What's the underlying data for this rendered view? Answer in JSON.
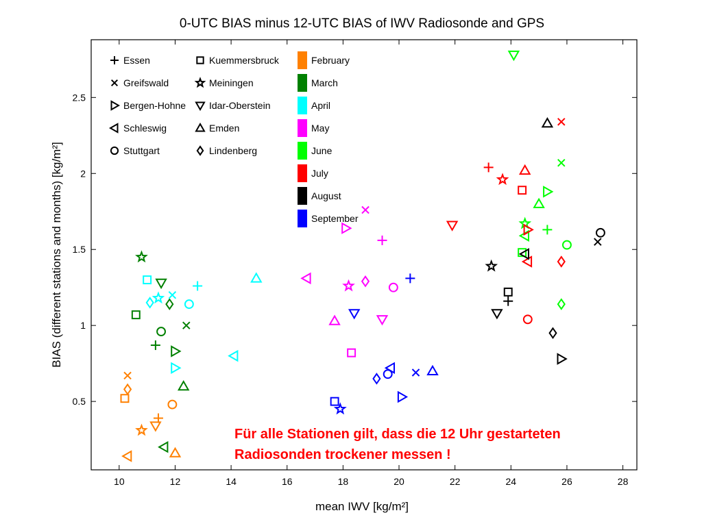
{
  "chart_data": {
    "type": "scatter",
    "title": "0-UTC BIAS minus 12-UTC BIAS of IWV Radiosonde and GPS",
    "xlabel": "mean IWV [kg/m²]",
    "ylabel": "BIAS (different stations and months) [kg/m²]",
    "xlim": [
      9,
      28.5
    ],
    "ylim": [
      0.05,
      2.88
    ],
    "xticks": [
      10,
      12,
      14,
      16,
      18,
      20,
      22,
      24,
      26,
      28
    ],
    "yticks": [
      0.5,
      1,
      1.5,
      2,
      2.5
    ],
    "grid": false,
    "legend_placement": "top-left",
    "stations": [
      {
        "name": "Essen",
        "marker": "plus"
      },
      {
        "name": "Greifswald",
        "marker": "cross"
      },
      {
        "name": "Bergen-Hohne",
        "marker": "triangle-right"
      },
      {
        "name": "Schleswig",
        "marker": "triangle-left"
      },
      {
        "name": "Stuttgart",
        "marker": "circle"
      },
      {
        "name": "Kuemmersbruck",
        "marker": "square"
      },
      {
        "name": "Meiningen",
        "marker": "star"
      },
      {
        "name": "Idar-Oberstein",
        "marker": "triangle-down"
      },
      {
        "name": "Emden",
        "marker": "triangle-up"
      },
      {
        "name": "Lindenberg",
        "marker": "diamond"
      }
    ],
    "months": [
      {
        "name": "February",
        "color": "#ff8000"
      },
      {
        "name": "March",
        "color": "#008000"
      },
      {
        "name": "April",
        "color": "#00ffff"
      },
      {
        "name": "May",
        "color": "#ff00ff"
      },
      {
        "name": "June",
        "color": "#00ff00"
      },
      {
        "name": "July",
        "color": "#ff0000"
      },
      {
        "name": "August",
        "color": "#000000"
      },
      {
        "name": "September",
        "color": "#0000ff"
      }
    ],
    "points": [
      {
        "month": "February",
        "station": "Essen",
        "x": 11.4,
        "y": 0.39
      },
      {
        "month": "February",
        "station": "Greifswald",
        "x": 10.3,
        "y": 0.67
      },
      {
        "month": "February",
        "station": "Schleswig",
        "x": 10.3,
        "y": 0.14
      },
      {
        "month": "February",
        "station": "Stuttgart",
        "x": 11.9,
        "y": 0.48
      },
      {
        "month": "February",
        "station": "Kuemmersbruck",
        "x": 10.2,
        "y": 0.52
      },
      {
        "month": "February",
        "station": "Meiningen",
        "x": 10.8,
        "y": 0.31
      },
      {
        "month": "February",
        "station": "Idar-Oberstein",
        "x": 11.3,
        "y": 0.34
      },
      {
        "month": "February",
        "station": "Emden",
        "x": 12.0,
        "y": 0.16
      },
      {
        "month": "February",
        "station": "Lindenberg",
        "x": 10.3,
        "y": 0.58
      },
      {
        "month": "March",
        "station": "Essen",
        "x": 11.3,
        "y": 0.87
      },
      {
        "month": "March",
        "station": "Greifswald",
        "x": 12.4,
        "y": 1.0
      },
      {
        "month": "March",
        "station": "Bergen-Hohne",
        "x": 12.0,
        "y": 0.83
      },
      {
        "month": "March",
        "station": "Schleswig",
        "x": 11.6,
        "y": 0.2
      },
      {
        "month": "March",
        "station": "Stuttgart",
        "x": 11.5,
        "y": 0.96
      },
      {
        "month": "March",
        "station": "Kuemmersbruck",
        "x": 10.6,
        "y": 1.07
      },
      {
        "month": "March",
        "station": "Meiningen",
        "x": 10.8,
        "y": 1.45
      },
      {
        "month": "March",
        "station": "Idar-Oberstein",
        "x": 11.5,
        "y": 1.28
      },
      {
        "month": "March",
        "station": "Emden",
        "x": 12.3,
        "y": 0.6
      },
      {
        "month": "March",
        "station": "Lindenberg",
        "x": 11.8,
        "y": 1.14
      },
      {
        "month": "April",
        "station": "Essen",
        "x": 12.8,
        "y": 1.26
      },
      {
        "month": "April",
        "station": "Greifswald",
        "x": 11.9,
        "y": 1.2
      },
      {
        "month": "April",
        "station": "Bergen-Hohne",
        "x": 12.0,
        "y": 0.72
      },
      {
        "month": "April",
        "station": "Schleswig",
        "x": 14.1,
        "y": 0.8
      },
      {
        "month": "April",
        "station": "Stuttgart",
        "x": 12.5,
        "y": 1.14
      },
      {
        "month": "April",
        "station": "Kuemmersbruck",
        "x": 11.0,
        "y": 1.3
      },
      {
        "month": "April",
        "station": "Meiningen",
        "x": 11.4,
        "y": 1.18
      },
      {
        "month": "April",
        "station": "Emden",
        "x": 14.9,
        "y": 1.31
      },
      {
        "month": "April",
        "station": "Lindenberg",
        "x": 11.1,
        "y": 1.15
      },
      {
        "month": "May",
        "station": "Essen",
        "x": 19.4,
        "y": 1.56
      },
      {
        "month": "May",
        "station": "Greifswald",
        "x": 18.8,
        "y": 1.76
      },
      {
        "month": "May",
        "station": "Bergen-Hohne",
        "x": 18.1,
        "y": 1.64
      },
      {
        "month": "May",
        "station": "Schleswig",
        "x": 16.7,
        "y": 1.31
      },
      {
        "month": "May",
        "station": "Stuttgart",
        "x": 19.8,
        "y": 1.25
      },
      {
        "month": "May",
        "station": "Kuemmersbruck",
        "x": 18.3,
        "y": 0.82
      },
      {
        "month": "May",
        "station": "Meiningen",
        "x": 18.2,
        "y": 1.26
      },
      {
        "month": "May",
        "station": "Idar-Oberstein",
        "x": 19.4,
        "y": 1.04
      },
      {
        "month": "May",
        "station": "Emden",
        "x": 17.7,
        "y": 1.03
      },
      {
        "month": "May",
        "station": "Lindenberg",
        "x": 18.8,
        "y": 1.29
      },
      {
        "month": "June",
        "station": "Essen",
        "x": 25.3,
        "y": 1.63
      },
      {
        "month": "June",
        "station": "Greifswald",
        "x": 25.8,
        "y": 2.07
      },
      {
        "month": "June",
        "station": "Bergen-Hohne",
        "x": 25.3,
        "y": 1.88
      },
      {
        "month": "June",
        "station": "Stuttgart",
        "x": 26.0,
        "y": 1.53
      },
      {
        "month": "June",
        "station": "Kuemmersbruck",
        "x": 24.4,
        "y": 1.48
      },
      {
        "month": "June",
        "station": "Meiningen",
        "x": 24.5,
        "y": 1.67
      },
      {
        "month": "June",
        "station": "Idar-Oberstein",
        "x": 24.1,
        "y": 2.78
      },
      {
        "month": "June",
        "station": "Emden",
        "x": 25.0,
        "y": 1.8
      },
      {
        "month": "June",
        "station": "Lindenberg",
        "x": 25.8,
        "y": 1.14
      },
      {
        "month": "June",
        "station": "Schleswig",
        "x": 24.5,
        "y": 1.59
      },
      {
        "month": "July",
        "station": "Essen",
        "x": 23.2,
        "y": 2.04
      },
      {
        "month": "July",
        "station": "Greifswald",
        "x": 25.8,
        "y": 2.34
      },
      {
        "month": "July",
        "station": "Bergen-Hohne",
        "x": 24.6,
        "y": 1.63
      },
      {
        "month": "July",
        "station": "Schleswig",
        "x": 24.6,
        "y": 1.42
      },
      {
        "month": "July",
        "station": "Stuttgart",
        "x": 24.6,
        "y": 1.04
      },
      {
        "month": "July",
        "station": "Kuemmersbruck",
        "x": 24.4,
        "y": 1.89
      },
      {
        "month": "July",
        "station": "Meiningen",
        "x": 23.7,
        "y": 1.96
      },
      {
        "month": "July",
        "station": "Idar-Oberstein",
        "x": 21.9,
        "y": 1.66
      },
      {
        "month": "July",
        "station": "Emden",
        "x": 24.5,
        "y": 2.02
      },
      {
        "month": "July",
        "station": "Lindenberg",
        "x": 25.8,
        "y": 1.42
      },
      {
        "month": "August",
        "station": "Essen",
        "x": 23.9,
        "y": 1.16
      },
      {
        "month": "August",
        "station": "Greifswald",
        "x": 27.1,
        "y": 1.55
      },
      {
        "month": "August",
        "station": "Bergen-Hohne",
        "x": 25.8,
        "y": 0.78
      },
      {
        "month": "August",
        "station": "Schleswig",
        "x": 24.5,
        "y": 1.47
      },
      {
        "month": "August",
        "station": "Stuttgart",
        "x": 27.2,
        "y": 1.61
      },
      {
        "month": "August",
        "station": "Kuemmersbruck",
        "x": 23.9,
        "y": 1.22
      },
      {
        "month": "August",
        "station": "Meiningen",
        "x": 23.3,
        "y": 1.39
      },
      {
        "month": "August",
        "station": "Idar-Oberstein",
        "x": 23.5,
        "y": 1.08
      },
      {
        "month": "August",
        "station": "Emden",
        "x": 25.3,
        "y": 2.33
      },
      {
        "month": "August",
        "station": "Lindenberg",
        "x": 25.5,
        "y": 0.95
      },
      {
        "month": "September",
        "station": "Essen",
        "x": 20.4,
        "y": 1.31
      },
      {
        "month": "September",
        "station": "Greifswald",
        "x": 20.6,
        "y": 0.69
      },
      {
        "month": "September",
        "station": "Bergen-Hohne",
        "x": 20.1,
        "y": 0.53
      },
      {
        "month": "September",
        "station": "Stuttgart",
        "x": 19.6,
        "y": 0.68
      },
      {
        "month": "September",
        "station": "Kuemmersbruck",
        "x": 17.7,
        "y": 0.5
      },
      {
        "month": "September",
        "station": "Meiningen",
        "x": 17.9,
        "y": 0.45
      },
      {
        "month": "September",
        "station": "Idar-Oberstein",
        "x": 18.4,
        "y": 1.08
      },
      {
        "month": "September",
        "station": "Emden",
        "x": 21.2,
        "y": 0.7
      },
      {
        "month": "September",
        "station": "Lindenberg",
        "x": 19.2,
        "y": 0.65
      },
      {
        "month": "September",
        "station": "Schleswig",
        "x": 19.7,
        "y": 0.72
      }
    ],
    "annotation": {
      "line1": "Für alle Stationen gilt, dass die 12 Uhr gestarteten",
      "line2": "Radiosonden trockener messen !"
    }
  }
}
